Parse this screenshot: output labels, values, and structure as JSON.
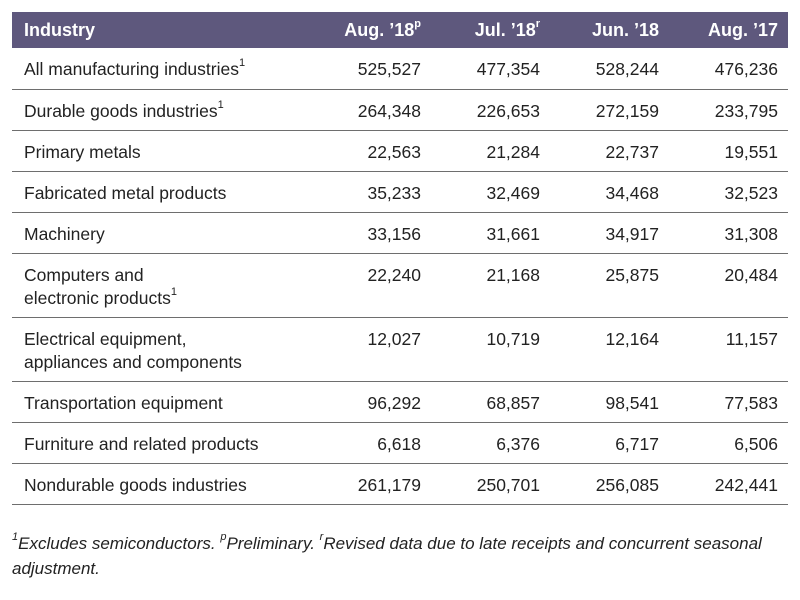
{
  "chart_data": {
    "type": "table",
    "columns": [
      {
        "label": "Industry",
        "sup": ""
      },
      {
        "label": "Aug. ’18",
        "sup": "p"
      },
      {
        "label": "Jul. ’18",
        "sup": "r"
      },
      {
        "label": "Jun. ’18",
        "sup": ""
      },
      {
        "label": "Aug. ’17",
        "sup": ""
      }
    ],
    "rows": [
      {
        "lines": [
          "All manufacturing industries"
        ],
        "sup": "1",
        "values": [
          "525,527",
          "477,354",
          "528,244",
          "476,236"
        ]
      },
      {
        "lines": [
          "Durable goods industries"
        ],
        "sup": "1",
        "values": [
          "264,348",
          "226,653",
          "272,159",
          "233,795"
        ]
      },
      {
        "lines": [
          "Primary metals"
        ],
        "sup": "",
        "values": [
          "22,563",
          "21,284",
          "22,737",
          "19,551"
        ]
      },
      {
        "lines": [
          "Fabricated metal products"
        ],
        "sup": "",
        "values": [
          "35,233",
          "32,469",
          "34,468",
          "32,523"
        ]
      },
      {
        "lines": [
          "Machinery"
        ],
        "sup": "",
        "values": [
          "33,156",
          "31,661",
          "34,917",
          "31,308"
        ]
      },
      {
        "lines": [
          "Computers and",
          "electronic products"
        ],
        "sup": "1",
        "values": [
          "22,240",
          "21,168",
          "25,875",
          "20,484"
        ]
      },
      {
        "lines": [
          "Electrical equipment,",
          "appliances and components"
        ],
        "sup": "",
        "values": [
          "12,027",
          "10,719",
          "12,164",
          "11,157"
        ]
      },
      {
        "lines": [
          "Transportation equipment"
        ],
        "sup": "",
        "values": [
          "96,292",
          "68,857",
          "98,541",
          "77,583"
        ]
      },
      {
        "lines": [
          "Furniture and related products"
        ],
        "sup": "",
        "values": [
          "6,618",
          "6,376",
          "6,717",
          "6,506"
        ]
      },
      {
        "lines": [
          "Nondurable goods industries"
        ],
        "sup": "",
        "values": [
          "261,179",
          "250,701",
          "256,085",
          "242,441"
        ]
      }
    ],
    "header_color": "#5e587d"
  },
  "footnote": {
    "sup1": "1",
    "text1": "Excludes semiconductors. ",
    "sup2": "p",
    "text2": "Preliminary. ",
    "sup3": "r",
    "text3": "Revised data due to late receipts and concurrent seasonal adjustment."
  }
}
